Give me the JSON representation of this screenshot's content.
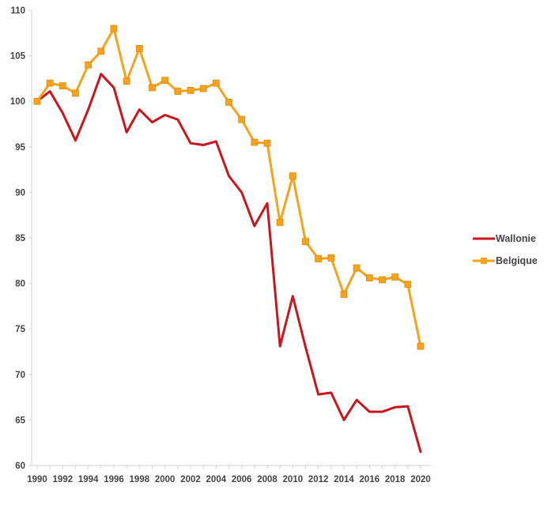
{
  "chart_data": {
    "type": "line",
    "title": "",
    "xlabel": "",
    "ylabel": "",
    "x": [
      1990,
      1991,
      1992,
      1993,
      1994,
      1995,
      1996,
      1997,
      1998,
      1999,
      2000,
      2001,
      2002,
      2003,
      2004,
      2005,
      2006,
      2007,
      2008,
      2009,
      2010,
      2011,
      2012,
      2013,
      2014,
      2015,
      2016,
      2017,
      2018,
      2019,
      2020
    ],
    "xticks": [
      "1990",
      "1992",
      "1994",
      "1996",
      "1998",
      "2000",
      "2002",
      "2004",
      "2006",
      "2008",
      "2010",
      "2012",
      "2014",
      "2016",
      "2018",
      "2020"
    ],
    "xlim": [
      1990,
      2020
    ],
    "ylim": [
      60,
      110
    ],
    "yticks": [
      "60",
      "65",
      "70",
      "75",
      "80",
      "85",
      "90",
      "95",
      "100",
      "105",
      "110"
    ],
    "grid": false,
    "legend_position": "right",
    "series": [
      {
        "name": "Wallonie",
        "color": "#c8161d",
        "marker": "none",
        "values": [
          100.0,
          101.1,
          98.7,
          95.7,
          99.1,
          103.0,
          101.5,
          96.6,
          99.1,
          97.7,
          98.5,
          98.0,
          95.4,
          95.2,
          95.6,
          91.8,
          90.0,
          86.3,
          88.8,
          73.1,
          78.6,
          73.0,
          67.8,
          68.0,
          65.0,
          67.2,
          65.9,
          65.9,
          66.4,
          66.5,
          61.5
        ]
      },
      {
        "name": "Belgique",
        "color": "#f5a21c",
        "marker": "square",
        "values": [
          100.0,
          102.0,
          101.7,
          100.9,
          104.0,
          105.5,
          108.0,
          102.2,
          105.8,
          101.5,
          102.3,
          101.1,
          101.2,
          101.4,
          102.0,
          99.9,
          98.0,
          95.5,
          95.4,
          86.7,
          91.8,
          84.6,
          82.7,
          82.8,
          78.8,
          81.7,
          80.6,
          80.4,
          80.7,
          79.9,
          73.1
        ]
      }
    ]
  }
}
